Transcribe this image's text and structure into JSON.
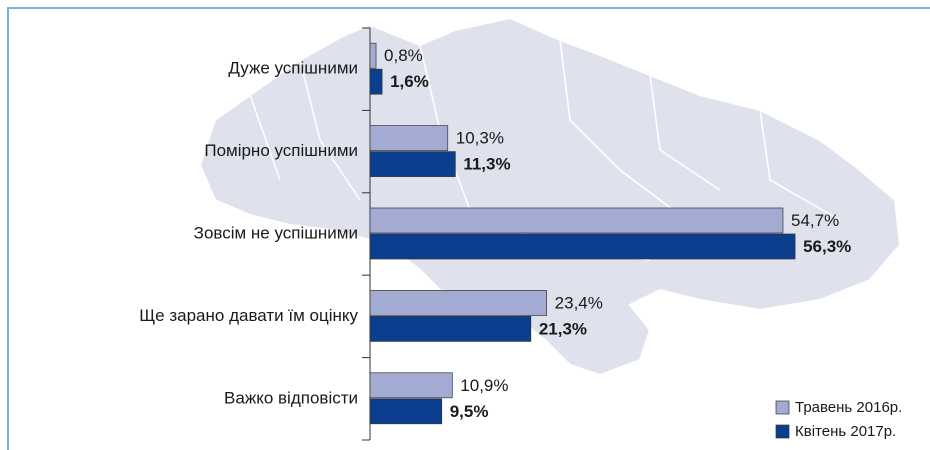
{
  "chart_data": {
    "type": "hbar",
    "categories": [
      "Дуже успішними",
      "Помірно успішними",
      "Зовсім не успішними",
      "Ще зарано давати їм оцінку",
      "Важко відповісти"
    ],
    "series": [
      {
        "name": "Травень 2016р.",
        "color": "#a3abd3",
        "values": [
          0.8,
          10.3,
          54.7,
          23.4,
          10.9
        ],
        "value_labels": [
          "0,8%",
          "10,3%",
          "54,7%",
          "23,4%",
          "10,9%"
        ]
      },
      {
        "name": "Квітень 2017р.",
        "color": "#0b3e8e",
        "values": [
          1.6,
          11.3,
          56.3,
          21.3,
          9.5
        ],
        "value_labels": [
          "1,6%",
          "11,3%",
          "56,3%",
          "21,3%",
          "9,5%"
        ]
      }
    ],
    "legend": "lower right"
  }
}
